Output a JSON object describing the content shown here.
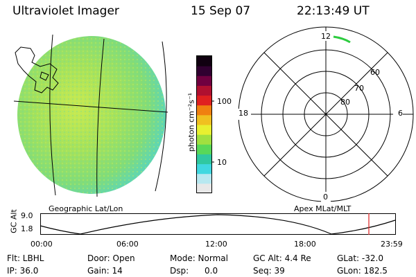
{
  "header": {
    "instrument": "Ultraviolet Imager",
    "date": "15 Sep 07",
    "time": "22:13:49 UT"
  },
  "colorbar": {
    "unit_label": "photon cm⁻²s⁻¹",
    "tick_100": "100",
    "tick_10": "10",
    "scale": "log",
    "colors": [
      "#e8e8e8",
      "#b8e8f0",
      "#40d8e0",
      "#30c8a0",
      "#58d858",
      "#a0e040",
      "#e8f030",
      "#f0c020",
      "#f08010",
      "#e02020",
      "#b01030",
      "#700040",
      "#300030",
      "#100010"
    ]
  },
  "globe_panel": {
    "label": "Geographic Lat/Lon",
    "image_fill_color": "#9ee26a"
  },
  "polar_panel": {
    "label": "Apex MLat/MLT",
    "mlt_labels": {
      "top": "12",
      "left": "18",
      "right": "6",
      "bottom": "0"
    },
    "mlat_labels": [
      "60",
      "70",
      "80"
    ],
    "arc_color": "#2ecc40"
  },
  "altitude_plot": {
    "axis_title": "GC Alt",
    "y_ticks": [
      "9.0",
      "1.8"
    ],
    "x_ticks": [
      "00:00",
      "06:00",
      "12:00",
      "18:00",
      "23:59"
    ],
    "marker_color": "#e03030"
  },
  "info_bar": {
    "flt": "Flt: LBHL",
    "ip": "IP: 36.0",
    "door": "Door: Open",
    "gain": "Gain: 14",
    "mode": "Mode: Normal",
    "dsp": "Dsp:      0.0",
    "gc_alt": "GC Alt: 4.4 Re",
    "seq": "Seq: 39",
    "glat": "GLat: -32.0",
    "glon": "GLon: 182.5"
  }
}
